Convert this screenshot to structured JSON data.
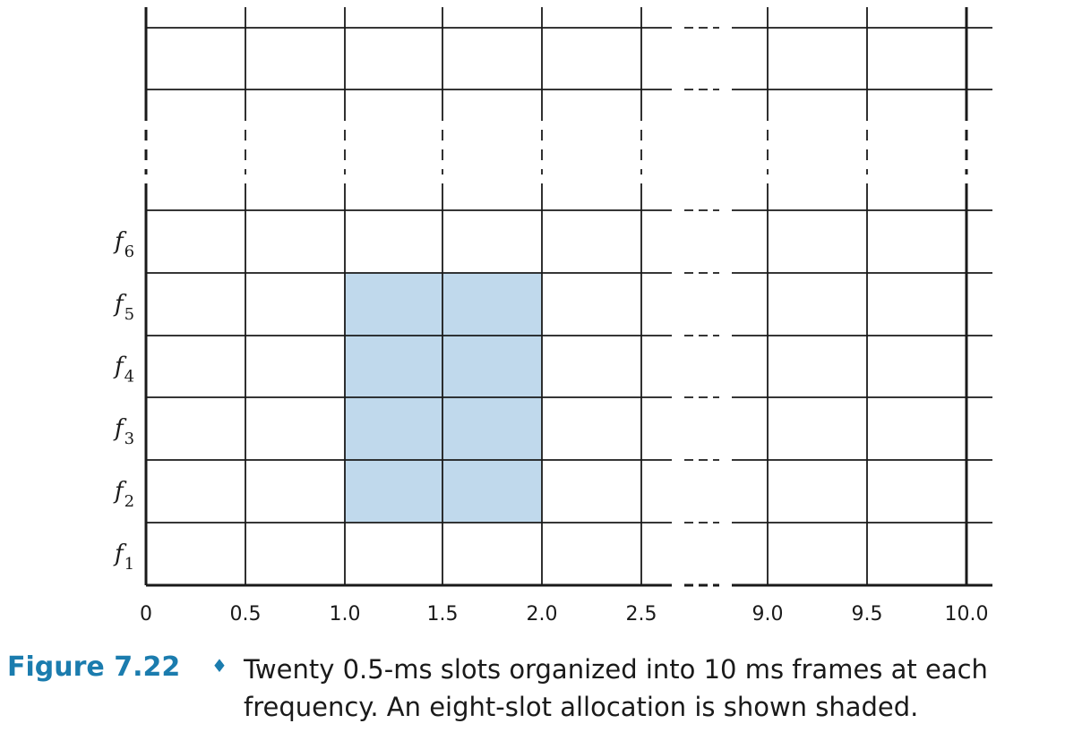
{
  "diagram": {
    "x_ticks": [
      "0",
      "0.5",
      "1.0",
      "1.5",
      "2.0",
      "2.5",
      "9.0",
      "9.5",
      "10.0"
    ],
    "frequency_labels": [
      {
        "letter": "f",
        "sub": "1"
      },
      {
        "letter": "f",
        "sub": "2"
      },
      {
        "letter": "f",
        "sub": "3"
      },
      {
        "letter": "f",
        "sub": "4"
      },
      {
        "letter": "f",
        "sub": "5"
      },
      {
        "letter": "f",
        "sub": "6"
      }
    ],
    "allocation": {
      "time_start_ms": 1.0,
      "time_end_ms": 2.0,
      "freq_start": 2,
      "freq_end": 5,
      "slots": 8,
      "fill_color": "#c0d9ec"
    },
    "line_color": "#1a1a1a"
  },
  "caption": {
    "label": "Figure 7.22",
    "bullet": "♦",
    "text": "Twenty 0.5-ms slots organized into 10 ms frames at each frequency. An eight-slot allocation is shown shaded.",
    "label_color": "#1b7cae"
  }
}
